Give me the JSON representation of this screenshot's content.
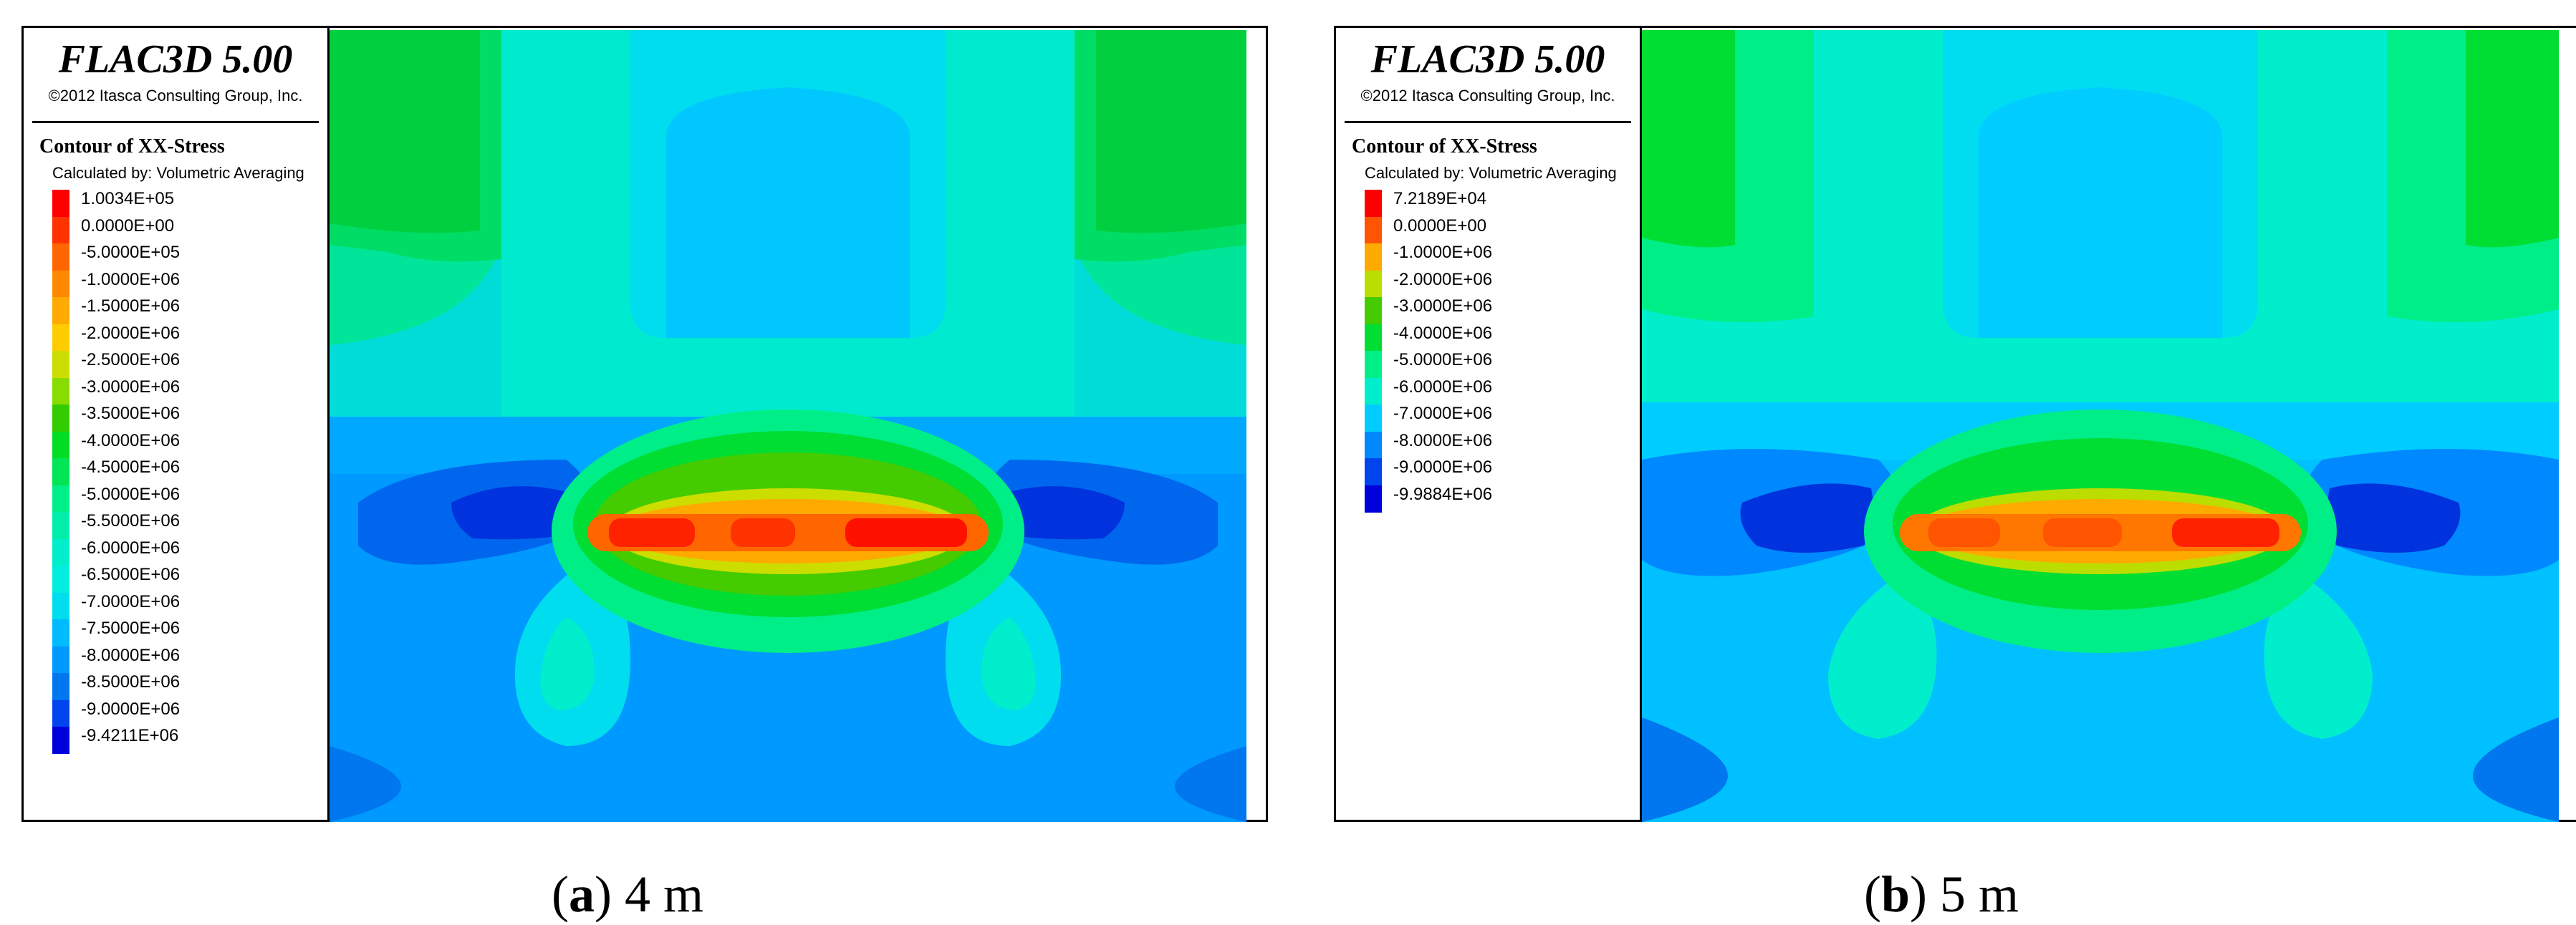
{
  "panels": [
    {
      "id": "a",
      "software": "FLAC3D 5.00",
      "copyright": "©2012 Itasca Consulting Group, Inc.",
      "contour_title": "Contour of XX-Stress",
      "method": "Calculated by: Volumetric Averaging",
      "levels": [
        {
          "label": "1.0034E+05",
          "color": "#ff0000"
        },
        {
          "label": "0.0000E+00",
          "color": "#ff3300"
        },
        {
          "label": "-5.0000E+05",
          "color": "#ff6600"
        },
        {
          "label": "-1.0000E+06",
          "color": "#ff8800"
        },
        {
          "label": "-1.5000E+06",
          "color": "#ffaa00"
        },
        {
          "label": "-2.0000E+06",
          "color": "#ffcc00"
        },
        {
          "label": "-2.5000E+06",
          "color": "#ccdd00"
        },
        {
          "label": "-3.0000E+06",
          "color": "#88dd00"
        },
        {
          "label": "-3.5000E+06",
          "color": "#33cc00"
        },
        {
          "label": "-4.0000E+06",
          "color": "#00dd22"
        },
        {
          "label": "-4.5000E+06",
          "color": "#00e555"
        },
        {
          "label": "-5.0000E+06",
          "color": "#00ee88"
        },
        {
          "label": "-5.5000E+06",
          "color": "#00eeaa"
        },
        {
          "label": "-6.0000E+06",
          "color": "#00eecc"
        },
        {
          "label": "-6.5000E+06",
          "color": "#00eedd"
        },
        {
          "label": "-7.0000E+06",
          "color": "#00ddee"
        },
        {
          "label": "-7.5000E+06",
          "color": "#00bbff"
        },
        {
          "label": "-8.0000E+06",
          "color": "#0099ff"
        },
        {
          "label": "-8.5000E+06",
          "color": "#0077ee"
        },
        {
          "label": "-9.0000E+06",
          "color": "#0044ee"
        },
        {
          "label": "-9.4211E+06",
          "color": "#0000dd"
        }
      ],
      "caption_letter": "a",
      "caption_text": "4 m"
    },
    {
      "id": "b",
      "software": "FLAC3D 5.00",
      "copyright": "©2012 Itasca Consulting Group, Inc.",
      "contour_title": "Contour of XX-Stress",
      "method": "Calculated by: Volumetric Averaging",
      "levels": [
        {
          "label": "7.2189E+04",
          "color": "#ff0000"
        },
        {
          "label": "0.0000E+00",
          "color": "#ff5500"
        },
        {
          "label": "-1.0000E+06",
          "color": "#ffaa00"
        },
        {
          "label": "-2.0000E+06",
          "color": "#bbdd00"
        },
        {
          "label": "-3.0000E+06",
          "color": "#44cc00"
        },
        {
          "label": "-4.0000E+06",
          "color": "#00dd33"
        },
        {
          "label": "-5.0000E+06",
          "color": "#00ee88"
        },
        {
          "label": "-6.0000E+06",
          "color": "#00eecc"
        },
        {
          "label": "-7.0000E+06",
          "color": "#00ccff"
        },
        {
          "label": "-8.0000E+06",
          "color": "#0088ff"
        },
        {
          "label": "-9.0000E+06",
          "color": "#0044ee"
        },
        {
          "label": "-9.9884E+06",
          "color": "#0000dd"
        }
      ],
      "caption_letter": "b",
      "caption_text": "5 m"
    }
  ]
}
